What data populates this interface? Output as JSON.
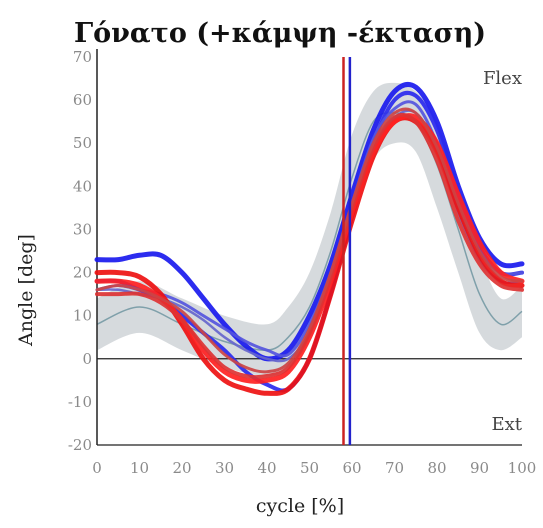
{
  "chart_data": {
    "type": "line",
    "title": "Γόνατο (+κάμψη -έκταση)",
    "xlabel": "cycle [%]",
    "ylabel": "Angle [deg]",
    "xlim": [
      0,
      100
    ],
    "ylim": [
      -20,
      70
    ],
    "xticks": [
      "0",
      "10",
      "20",
      "30",
      "40",
      "50",
      "60",
      "70",
      "80",
      "90",
      "100"
    ],
    "yticks": [
      "70",
      "60",
      "50",
      "40",
      "30",
      "20",
      "10",
      "0",
      "-10",
      "-20"
    ],
    "annotations": {
      "top": "Flex",
      "bottom": "Ext"
    },
    "grid": false,
    "zero_line": true,
    "normal_band": {
      "x": [
        0,
        10,
        20,
        30,
        40,
        45,
        50,
        55,
        60,
        65,
        70,
        75,
        80,
        85,
        90,
        95,
        100
      ],
      "mean": [
        8,
        12,
        8,
        4,
        2,
        5,
        12,
        25,
        42,
        55,
        57,
        55,
        45,
        30,
        15,
        8,
        11
      ],
      "upper": [
        14,
        18,
        14,
        10,
        8,
        12,
        20,
        34,
        52,
        62,
        64,
        62,
        55,
        40,
        24,
        14,
        17
      ],
      "lower": [
        2,
        6,
        2,
        -2,
        -4,
        -2,
        4,
        16,
        32,
        46,
        50,
        48,
        35,
        20,
        6,
        2,
        5
      ],
      "colors": {
        "band": "#c8cdd2",
        "mean": "#7fa0aa"
      }
    },
    "events": [
      {
        "x": 58,
        "color": "#cc2222"
      },
      {
        "x": 59.5,
        "color": "#2222cc"
      }
    ],
    "series": [
      {
        "color": "#1a1aee",
        "width": 5,
        "x": [
          0,
          5,
          10,
          15,
          20,
          25,
          30,
          35,
          40,
          45,
          50,
          55,
          60,
          65,
          70,
          75,
          80,
          85,
          90,
          95,
          100
        ],
        "values": [
          23,
          23,
          24,
          24,
          20,
          14,
          8,
          3,
          0,
          2,
          10,
          22,
          38,
          53,
          62,
          63,
          55,
          40,
          28,
          22,
          22
        ]
      },
      {
        "color": "#2a2aee",
        "width": 4,
        "x": [
          0,
          5,
          10,
          15,
          20,
          25,
          30,
          35,
          40,
          45,
          50,
          55,
          60,
          65,
          70,
          75,
          80,
          85,
          90,
          95,
          100
        ],
        "values": [
          18,
          18,
          16,
          14,
          10,
          6,
          2,
          -3,
          -6,
          -7,
          0,
          15,
          33,
          50,
          60,
          61,
          53,
          38,
          26,
          20,
          20
        ]
      },
      {
        "color": "#5555dd",
        "width": 3,
        "x": [
          0,
          5,
          10,
          15,
          20,
          25,
          30,
          35,
          40,
          45,
          50,
          55,
          60,
          65,
          70,
          75,
          80,
          85,
          90,
          95,
          100
        ],
        "values": [
          16,
          17,
          16,
          15,
          13,
          10,
          7,
          4,
          2,
          1,
          8,
          20,
          36,
          51,
          58,
          59,
          50,
          36,
          25,
          20,
          20
        ]
      },
      {
        "color": "#6666cc",
        "width": 2.5,
        "x": [
          0,
          5,
          10,
          15,
          20,
          25,
          30,
          35,
          40,
          45,
          50,
          55,
          60,
          65,
          70,
          75,
          80,
          85,
          90,
          95,
          100
        ],
        "values": [
          16,
          16,
          15,
          14,
          12,
          9,
          5,
          2,
          0,
          0,
          6,
          18,
          34,
          49,
          56,
          57,
          49,
          34,
          23,
          18,
          18
        ]
      },
      {
        "color": "#ee1111",
        "width": 5,
        "x": [
          0,
          5,
          10,
          15,
          20,
          25,
          30,
          35,
          40,
          45,
          50,
          55,
          60,
          65,
          70,
          75,
          80,
          85,
          90,
          95,
          100
        ],
        "values": [
          20,
          20,
          19,
          15,
          8,
          0,
          -5,
          -7,
          -8,
          -7,
          0,
          15,
          32,
          47,
          55,
          55,
          48,
          35,
          24,
          18,
          17
        ]
      },
      {
        "color": "#ff2222",
        "width": 5,
        "x": [
          0,
          5,
          10,
          15,
          20,
          25,
          30,
          35,
          40,
          45,
          50,
          55,
          60,
          65,
          70,
          75,
          80,
          85,
          90,
          95,
          100
        ],
        "values": [
          18,
          18,
          17,
          14,
          9,
          2,
          -3,
          -5,
          -5,
          -3,
          5,
          18,
          34,
          48,
          55,
          56,
          50,
          38,
          27,
          20,
          18
        ]
      },
      {
        "color": "#dd3333",
        "width": 4,
        "x": [
          0,
          5,
          10,
          15,
          20,
          25,
          30,
          35,
          40,
          45,
          50,
          55,
          60,
          65,
          70,
          75,
          80,
          85,
          90,
          95,
          100
        ],
        "values": [
          15,
          15,
          15,
          13,
          9,
          3,
          -2,
          -4,
          -4,
          -2,
          6,
          19,
          35,
          49,
          56,
          55,
          46,
          32,
          22,
          17,
          16
        ]
      },
      {
        "color": "#cc4444",
        "width": 3,
        "x": [
          0,
          5,
          10,
          15,
          20,
          25,
          30,
          35,
          40,
          45,
          50,
          55,
          60,
          65,
          70,
          75,
          80,
          85,
          90,
          95,
          100
        ],
        "values": [
          16,
          17,
          16,
          14,
          11,
          6,
          1,
          -2,
          -3,
          -1,
          7,
          20,
          36,
          50,
          57,
          57,
          49,
          36,
          25,
          19,
          18
        ]
      }
    ]
  }
}
